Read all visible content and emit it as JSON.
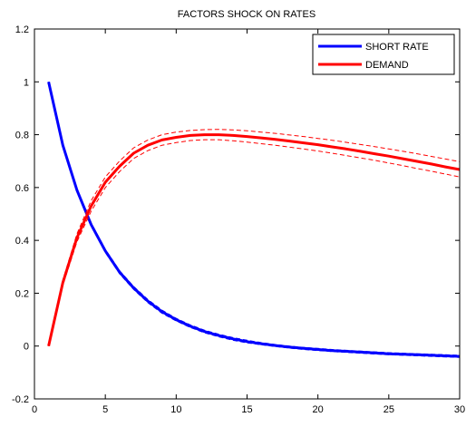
{
  "chart_data": {
    "type": "line",
    "title": "FACTORS SHOCK ON RATES",
    "xlabel": "",
    "ylabel": "",
    "xlim": [
      0,
      30
    ],
    "ylim": [
      -0.2,
      1.2
    ],
    "xticks": [
      0,
      5,
      10,
      15,
      20,
      25,
      30
    ],
    "xtick_labels": [
      "0",
      "5",
      "10",
      "15",
      "20",
      "25",
      "30"
    ],
    "yticks": [
      -0.2,
      0,
      0.2,
      0.4,
      0.6,
      0.8,
      1,
      1.2
    ],
    "ytick_labels": [
      "-0.2",
      "0",
      "0.2",
      "0.4",
      "0.6",
      "0.8",
      "1",
      "1.2"
    ],
    "grid": false,
    "legend_position": "top-right",
    "x": [
      1,
      2,
      3,
      4,
      5,
      6,
      7,
      8,
      9,
      10,
      11,
      12,
      13,
      14,
      15,
      16,
      17,
      18,
      19,
      20,
      21,
      22,
      23,
      24,
      25,
      26,
      27,
      28,
      29,
      30
    ],
    "series": [
      {
        "name": "SHORT RATE",
        "color": "#0000ff",
        "values": [
          1.0,
          0.76,
          0.59,
          0.46,
          0.36,
          0.28,
          0.22,
          0.17,
          0.13,
          0.1,
          0.075,
          0.055,
          0.04,
          0.027,
          0.017,
          0.009,
          0.002,
          -0.004,
          -0.009,
          -0.013,
          -0.017,
          -0.02,
          -0.023,
          -0.026,
          -0.029,
          -0.031,
          -0.033,
          -0.035,
          -0.037,
          -0.039
        ],
        "upper": [
          1.0,
          0.765,
          0.596,
          0.466,
          0.366,
          0.286,
          0.226,
          0.176,
          0.136,
          0.105,
          0.08,
          0.06,
          0.045,
          0.032,
          0.022,
          0.013,
          0.006,
          0.0,
          -0.005,
          -0.009,
          -0.013,
          -0.016,
          -0.019,
          -0.022,
          -0.025,
          -0.027,
          -0.029,
          -0.031,
          -0.033,
          -0.035
        ],
        "lower": [
          1.0,
          0.755,
          0.584,
          0.454,
          0.354,
          0.274,
          0.214,
          0.164,
          0.124,
          0.095,
          0.07,
          0.05,
          0.035,
          0.022,
          0.012,
          0.005,
          -0.002,
          -0.008,
          -0.013,
          -0.017,
          -0.021,
          -0.024,
          -0.027,
          -0.03,
          -0.033,
          -0.035,
          -0.037,
          -0.039,
          -0.041,
          -0.043
        ]
      },
      {
        "name": "DEMAND",
        "color": "#ff0000",
        "values": [
          0.0,
          0.24,
          0.41,
          0.53,
          0.62,
          0.68,
          0.73,
          0.76,
          0.78,
          0.79,
          0.797,
          0.8,
          0.8,
          0.797,
          0.793,
          0.788,
          0.782,
          0.776,
          0.769,
          0.762,
          0.754,
          0.746,
          0.737,
          0.728,
          0.719,
          0.709,
          0.699,
          0.689,
          0.678,
          0.668
        ],
        "upper": [
          0.0,
          0.25,
          0.425,
          0.55,
          0.64,
          0.7,
          0.75,
          0.78,
          0.8,
          0.81,
          0.816,
          0.819,
          0.82,
          0.818,
          0.815,
          0.81,
          0.805,
          0.799,
          0.793,
          0.786,
          0.779,
          0.771,
          0.763,
          0.755,
          0.746,
          0.737,
          0.728,
          0.718,
          0.708,
          0.698
        ],
        "lower": [
          0.0,
          0.23,
          0.395,
          0.51,
          0.6,
          0.66,
          0.71,
          0.74,
          0.76,
          0.77,
          0.778,
          0.781,
          0.781,
          0.777,
          0.772,
          0.766,
          0.76,
          0.753,
          0.746,
          0.738,
          0.73,
          0.721,
          0.712,
          0.703,
          0.693,
          0.683,
          0.672,
          0.662,
          0.651,
          0.64
        ]
      }
    ]
  }
}
